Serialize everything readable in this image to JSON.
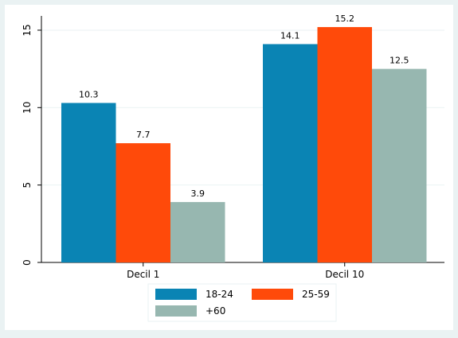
{
  "chart_data": {
    "type": "bar",
    "categories": [
      "Decil 1",
      "Decil 10"
    ],
    "series": [
      {
        "name": "18-24",
        "color": "#0a84b4",
        "values": [
          10.3,
          14.1
        ]
      },
      {
        "name": "25-59",
        "color": "#ff4a0a",
        "values": [
          7.7,
          15.2
        ]
      },
      {
        "name": "+60",
        "color": "#97b7b0",
        "values": [
          3.9,
          12.5
        ]
      }
    ],
    "data_labels": [
      [
        "10.3",
        "14.1"
      ],
      [
        "7.7",
        "15.2"
      ],
      [
        "3.9",
        "12.5"
      ]
    ],
    "yticks": [
      0,
      5,
      10,
      15
    ],
    "ytick_labels": [
      "0",
      "5",
      "10",
      "15"
    ],
    "ylim": [
      0,
      15.5
    ],
    "grid": true,
    "legend_placement": "bottom",
    "title": "",
    "xlabel": "",
    "ylabel": "",
    "colors": {
      "outer_background": "#eaf2f3",
      "plot_background": "#ffffff",
      "gridline": "#eaf2f3",
      "axis": "#000000"
    }
  }
}
